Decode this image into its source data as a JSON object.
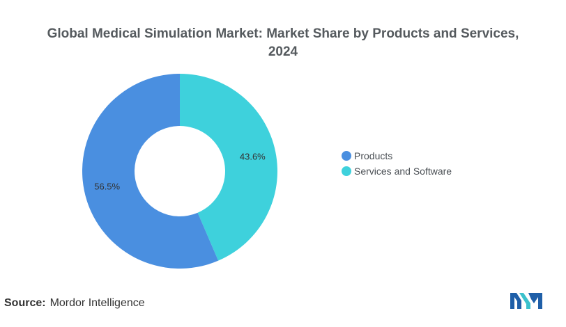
{
  "chart_data": {
    "type": "pie",
    "title_lines": [
      "Global Medical Simulation Market: Market Share by Products and Services,",
      "2024"
    ],
    "categories": [
      "Products",
      "Services and Software"
    ],
    "values": [
      56.5,
      43.6
    ],
    "data_labels": [
      "56.5%",
      "43.6%"
    ],
    "colors": [
      "#4a8fe0",
      "#3ed1dc"
    ],
    "donut": true,
    "legend_placement": "right"
  },
  "source": {
    "key": "Source:",
    "value": "Mordor Intelligence"
  },
  "logo": {
    "colors": [
      "#1f5fa8",
      "#3bc1cc"
    ]
  }
}
